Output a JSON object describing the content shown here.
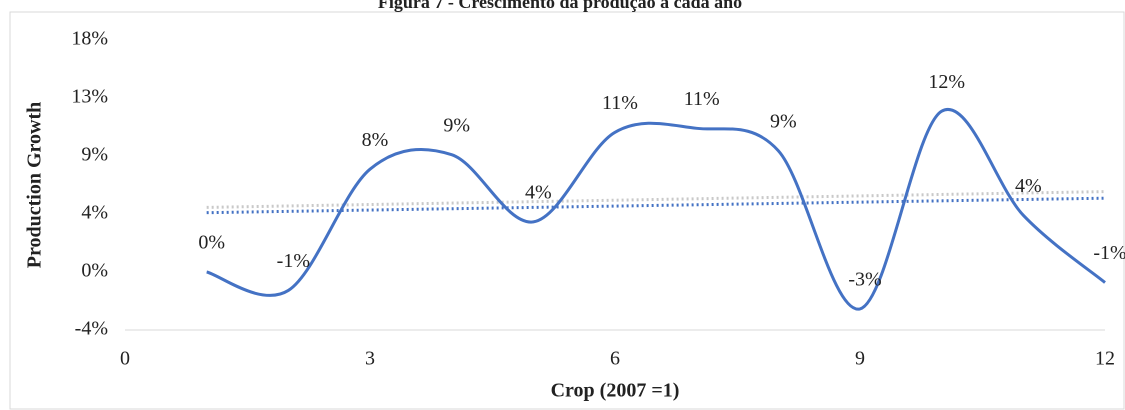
{
  "chart_data": {
    "type": "line",
    "title": "Figura 7 - Crescimento da produção a cada ano",
    "x_label": "Crop (2007 =1)",
    "y_label": "Production Growth",
    "x": [
      1,
      2,
      3,
      4,
      5,
      6,
      7,
      8,
      9,
      10,
      11,
      12
    ],
    "series": [
      {
        "color": "#4472c4",
        "values": [
          0,
          -1.4,
          7.8,
          8.9,
          3.8,
          10.6,
          10.9,
          9.2,
          -2.8,
          12.2,
          4.3,
          -0.8
        ],
        "value_labels": [
          "0%",
          "-1%",
          "8%",
          "9%",
          "4%",
          "11%",
          "11%",
          "9%",
          "-3%",
          "12%",
          "4%",
          "-1%"
        ]
      }
    ],
    "trendlines": [
      {
        "color": "#c9c9c9",
        "x": [
          1,
          12
        ],
        "values": [
          4.9,
          6.1
        ]
      },
      {
        "color": "#4472c4",
        "x": [
          1,
          12
        ],
        "values": [
          4.5,
          5.6
        ]
      }
    ],
    "xlim": [
      0,
      12
    ],
    "xticks": [
      0,
      3,
      6,
      9,
      12
    ],
    "ylim": [
      -4.4,
      17.6
    ],
    "yticks": [
      {
        "value": -4.4,
        "label": "-4%"
      },
      {
        "value": 0,
        "label": "0%"
      },
      {
        "value": 4.4,
        "label": "4%"
      },
      {
        "value": 8.8,
        "label": "9%"
      },
      {
        "value": 13.2,
        "label": "13%"
      },
      {
        "value": 17.6,
        "label": "18%"
      }
    ],
    "grid": false
  }
}
